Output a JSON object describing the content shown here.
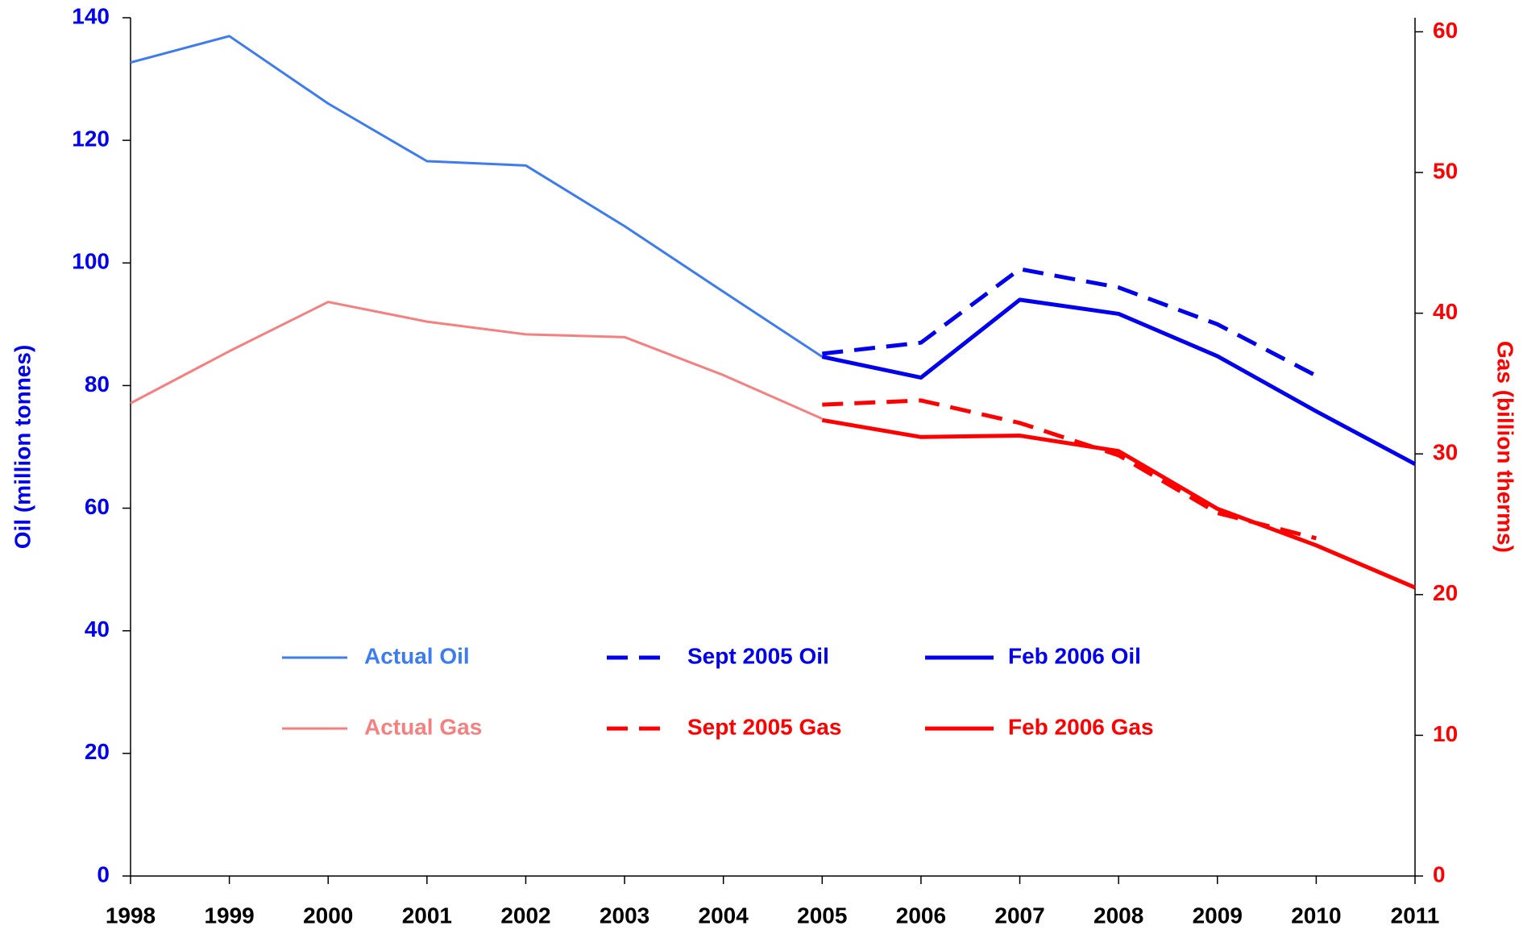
{
  "chart_data": {
    "type": "line",
    "categories": [
      "1998",
      "1999",
      "2000",
      "2001",
      "2002",
      "2003",
      "2004",
      "2005",
      "2006",
      "2007",
      "2008",
      "2009",
      "2010",
      "2011"
    ],
    "ylabel": "Oil (million tonnes)",
    "y2label": "Gas (billion therms)",
    "ylim": [
      0,
      140
    ],
    "yticks": [
      0,
      20,
      40,
      60,
      80,
      100,
      120,
      140
    ],
    "y2lim": [
      0,
      61
    ],
    "y2ticks": [
      0,
      10,
      20,
      30,
      40,
      50,
      60
    ],
    "ycolor": "#0000ee",
    "y2color": "#ff0000",
    "grid": false,
    "series": [
      {
        "name": "Actual Oil",
        "color": "#3d7cf0",
        "line_style": "solid",
        "width": "thin",
        "values": [
          132.7,
          137,
          126,
          116.6,
          115.9,
          106,
          95.3,
          84.7,
          null,
          null,
          null,
          null,
          null,
          null
        ]
      },
      {
        "name": "Sept 2005 Oil",
        "color": "#0000ee",
        "line_style": "dashed",
        "width": "thick",
        "values": [
          null,
          null,
          null,
          null,
          null,
          null,
          null,
          85.2,
          87,
          99,
          96,
          90,
          81.6,
          null
        ]
      },
      {
        "name": "Feb 2006 Oil",
        "color": "#0000ee",
        "line_style": "solid",
        "width": "thick",
        "values": [
          null,
          null,
          null,
          null,
          null,
          null,
          null,
          84.7,
          81.3,
          94,
          91.7,
          84.8,
          75.8,
          67.2
        ]
      },
      {
        "name": "Actual Gas",
        "color": "#f58080",
        "line_style": "solid",
        "width": "thin",
        "axis": "y2",
        "values": [
          33.6,
          37.3,
          40.8,
          39.4,
          38.5,
          38.3,
          35.6,
          32.5,
          null,
          null,
          null,
          null,
          null,
          null
        ]
      },
      {
        "name": "Sept 2005 Gas",
        "color": "#ff0000",
        "line_style": "dashed",
        "width": "thick",
        "axis": "y2",
        "values": [
          null,
          null,
          null,
          null,
          null,
          null,
          null,
          33.5,
          33.8,
          32.2,
          29.9,
          25.8,
          24.0,
          null
        ]
      },
      {
        "name": "Feb 2006 Gas",
        "color": "#ff0000",
        "line_style": "solid",
        "width": "thick",
        "axis": "y2",
        "values": [
          null,
          null,
          null,
          null,
          null,
          null,
          null,
          32.4,
          31.2,
          31.3,
          30.2,
          26.1,
          23.5,
          20.5
        ]
      }
    ]
  }
}
